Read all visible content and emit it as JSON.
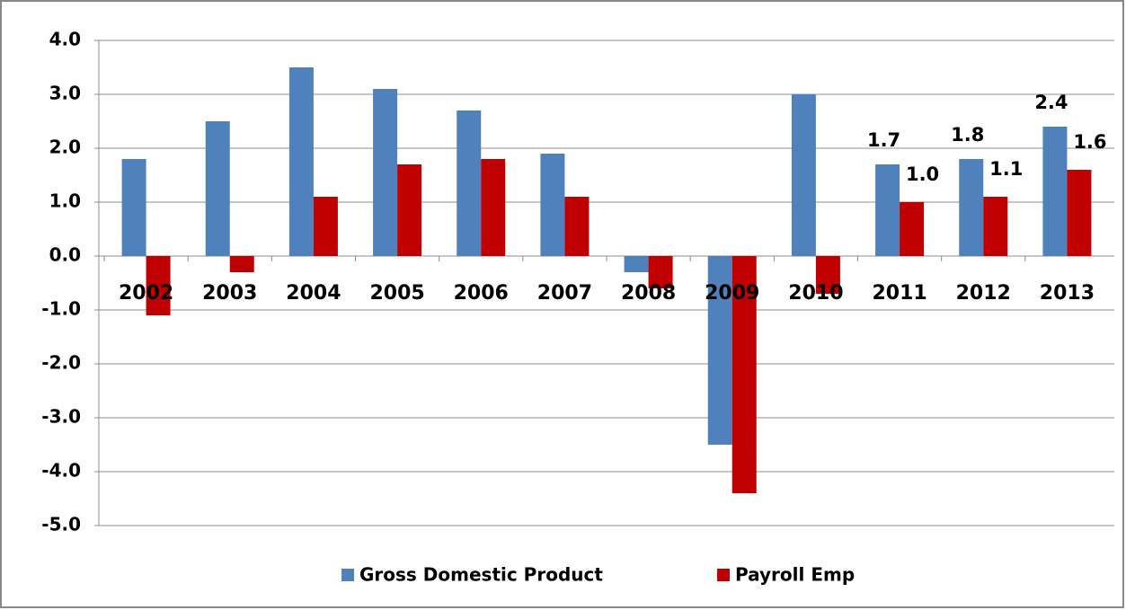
{
  "chart_data": {
    "type": "bar",
    "categories": [
      "2002",
      "2003",
      "2004",
      "2005",
      "2006",
      "2007",
      "2008",
      "2009",
      "2010",
      "2011",
      "2012",
      "2013"
    ],
    "series": [
      {
        "name": "Gross Domestic Product",
        "color": "#4f81bd",
        "values": [
          1.8,
          2.5,
          3.5,
          3.1,
          2.7,
          1.9,
          -0.3,
          -3.5,
          3.0,
          1.7,
          1.8,
          2.4
        ],
        "value_labels": [
          null,
          null,
          null,
          null,
          null,
          null,
          null,
          null,
          null,
          "1.7",
          "1.8",
          "2.4"
        ]
      },
      {
        "name": "Payroll Emp",
        "color": "#c00000",
        "values": [
          -1.1,
          -0.3,
          1.1,
          1.7,
          1.8,
          1.1,
          -0.6,
          -4.4,
          -0.7,
          1.0,
          1.1,
          1.6
        ],
        "value_labels": [
          null,
          null,
          null,
          null,
          null,
          null,
          null,
          null,
          null,
          "1.0",
          "1.1",
          "1.6"
        ]
      }
    ],
    "ylim": [
      -5,
      4
    ],
    "yticks": [
      {
        "value": -5,
        "label": "-5.0"
      },
      {
        "value": -4,
        "label": "-4.0"
      },
      {
        "value": -3,
        "label": "-3.0"
      },
      {
        "value": -2,
        "label": "-2.0"
      },
      {
        "value": -1,
        "label": "-1.0"
      },
      {
        "value": 0,
        "label": "0.0"
      },
      {
        "value": 1,
        "label": "1.0"
      },
      {
        "value": 2,
        "label": "2.0"
      },
      {
        "value": 3,
        "label": "3.0"
      },
      {
        "value": 4,
        "label": "4.0"
      }
    ],
    "grid": true,
    "legend": "bottom"
  }
}
